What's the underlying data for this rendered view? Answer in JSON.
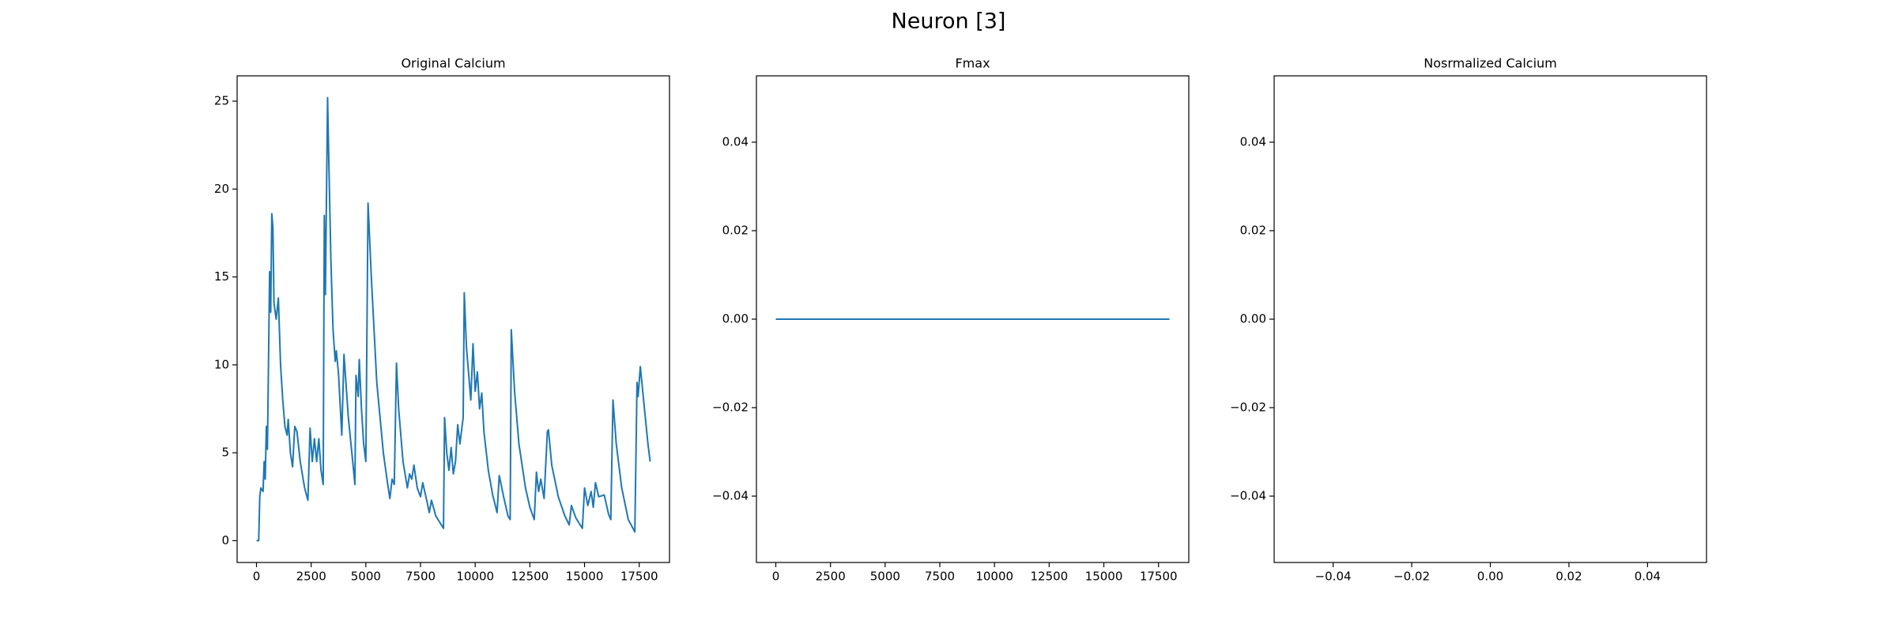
{
  "title": "Neuron [3]",
  "chart_data": [
    {
      "type": "line",
      "title": "Original Calcium",
      "color": "#1f77b4",
      "x": [
        0,
        100,
        150,
        200,
        300,
        350,
        400,
        450,
        500,
        600,
        650,
        700,
        750,
        800,
        900,
        1000,
        1100,
        1200,
        1300,
        1400,
        1450,
        1550,
        1650,
        1750,
        1850,
        2000,
        2200,
        2350,
        2450,
        2550,
        2650,
        2750,
        2850,
        2950,
        3050,
        3100,
        3150,
        3250,
        3300,
        3400,
        3500,
        3600,
        3650,
        3750,
        3900,
        4000,
        4200,
        4400,
        4500,
        4550,
        4650,
        4700,
        4800,
        4900,
        5000,
        5100,
        5250,
        5500,
        5800,
        6000,
        6100,
        6200,
        6300,
        6400,
        6500,
        6700,
        6900,
        7000,
        7100,
        7200,
        7350,
        7500,
        7600,
        7800,
        7900,
        8000,
        8200,
        8400,
        8550,
        8600,
        8700,
        8800,
        8900,
        9000,
        9100,
        9200,
        9300,
        9450,
        9500,
        9600,
        9800,
        9900,
        10000,
        10100,
        10200,
        10300,
        10400,
        10600,
        10800,
        11000,
        11100,
        11300,
        11500,
        11600,
        11650,
        11800,
        12000,
        12300,
        12500,
        12700,
        12800,
        12900,
        13000,
        13150,
        13300,
        13350,
        13500,
        13800,
        14100,
        14300,
        14400,
        14600,
        14900,
        15000,
        15150,
        15300,
        15400,
        15500,
        15650,
        15900,
        16100,
        16200,
        16300,
        16450,
        16700,
        17000,
        17300,
        17400,
        17450,
        17550,
        17700,
        17900,
        18000
      ],
      "values": [
        0,
        0,
        2.5,
        3,
        2.8,
        4.5,
        3.5,
        6.5,
        5.2,
        15.3,
        13,
        18.6,
        17.8,
        13.5,
        12.6,
        13.8,
        10,
        8,
        6.5,
        6,
        6.9,
        5,
        4.2,
        6.5,
        6.2,
        4.5,
        3,
        2.3,
        6.4,
        4.5,
        5.8,
        4.5,
        5.8,
        4,
        3.2,
        18.5,
        14,
        25.2,
        22,
        16,
        12,
        10.2,
        10.8,
        9.5,
        6,
        10.6,
        7,
        4.5,
        3.2,
        9.4,
        8.2,
        10.3,
        7.5,
        5.5,
        4.5,
        19.2,
        15,
        9,
        5,
        3.2,
        2.4,
        3.5,
        3.2,
        10.1,
        7.5,
        4.5,
        3,
        3.8,
        3.5,
        4.3,
        3,
        2.5,
        3.3,
        2.2,
        1.6,
        2.3,
        1.4,
        1.0,
        0.7,
        7,
        5,
        4,
        5.3,
        3.8,
        4.5,
        6.6,
        5.5,
        7,
        14.1,
        11,
        8,
        11.2,
        8.5,
        9.6,
        7.5,
        8.4,
        6.2,
        4,
        2.6,
        1.6,
        3.7,
        2.5,
        1.4,
        1.2,
        12,
        8.5,
        5.5,
        3,
        1.9,
        1.2,
        3.9,
        2.8,
        3.5,
        2.4,
        6.2,
        6.3,
        4.3,
        2.5,
        1.4,
        0.9,
        2,
        1.3,
        0.7,
        3,
        2,
        2.8,
        1.9,
        3.3,
        2.5,
        2.6,
        1.5,
        1.2,
        8,
        5.5,
        3.0,
        1.2,
        0.5,
        9,
        8.2,
        9.9,
        8,
        5.5,
        4.5
      ],
      "xlim": [
        -886,
        18884
      ],
      "ylim": [
        -1.24,
        26.44
      ],
      "xticks": [
        0,
        2500,
        5000,
        7500,
        10000,
        12500,
        15000,
        17500
      ],
      "yticks": [
        0,
        5,
        10,
        15,
        20,
        25
      ]
    },
    {
      "type": "line",
      "title": "Fmax",
      "color": "#1f77b4",
      "x": [
        0,
        18000
      ],
      "values": [
        0,
        0
      ],
      "xlim": [
        -886,
        18884
      ],
      "ylim": [
        -0.055,
        0.055
      ],
      "xticks": [
        0,
        2500,
        5000,
        7500,
        10000,
        12500,
        15000,
        17500
      ],
      "yticks": [
        {
          "value": -0.04,
          "label": "−0.04"
        },
        {
          "value": -0.02,
          "label": "−0.02"
        },
        {
          "value": 0,
          "label": "0.00"
        },
        0.02,
        0.04
      ]
    },
    {
      "type": "line",
      "title": "Nosrmalized Calcium",
      "xlim": [
        -0.055,
        0.055
      ],
      "ylim": [
        -0.055,
        0.055
      ],
      "xticks": [
        {
          "value": -0.04,
          "label": "−0.04"
        },
        {
          "value": -0.02,
          "label": "−0.02"
        },
        {
          "value": 0,
          "label": "0.00"
        },
        0.02,
        0.04
      ],
      "yticks": [
        {
          "value": -0.04,
          "label": "−0.04"
        },
        {
          "value": -0.02,
          "label": "−0.02"
        },
        {
          "value": 0,
          "label": "0.00"
        },
        0.02,
        0.04
      ]
    }
  ]
}
